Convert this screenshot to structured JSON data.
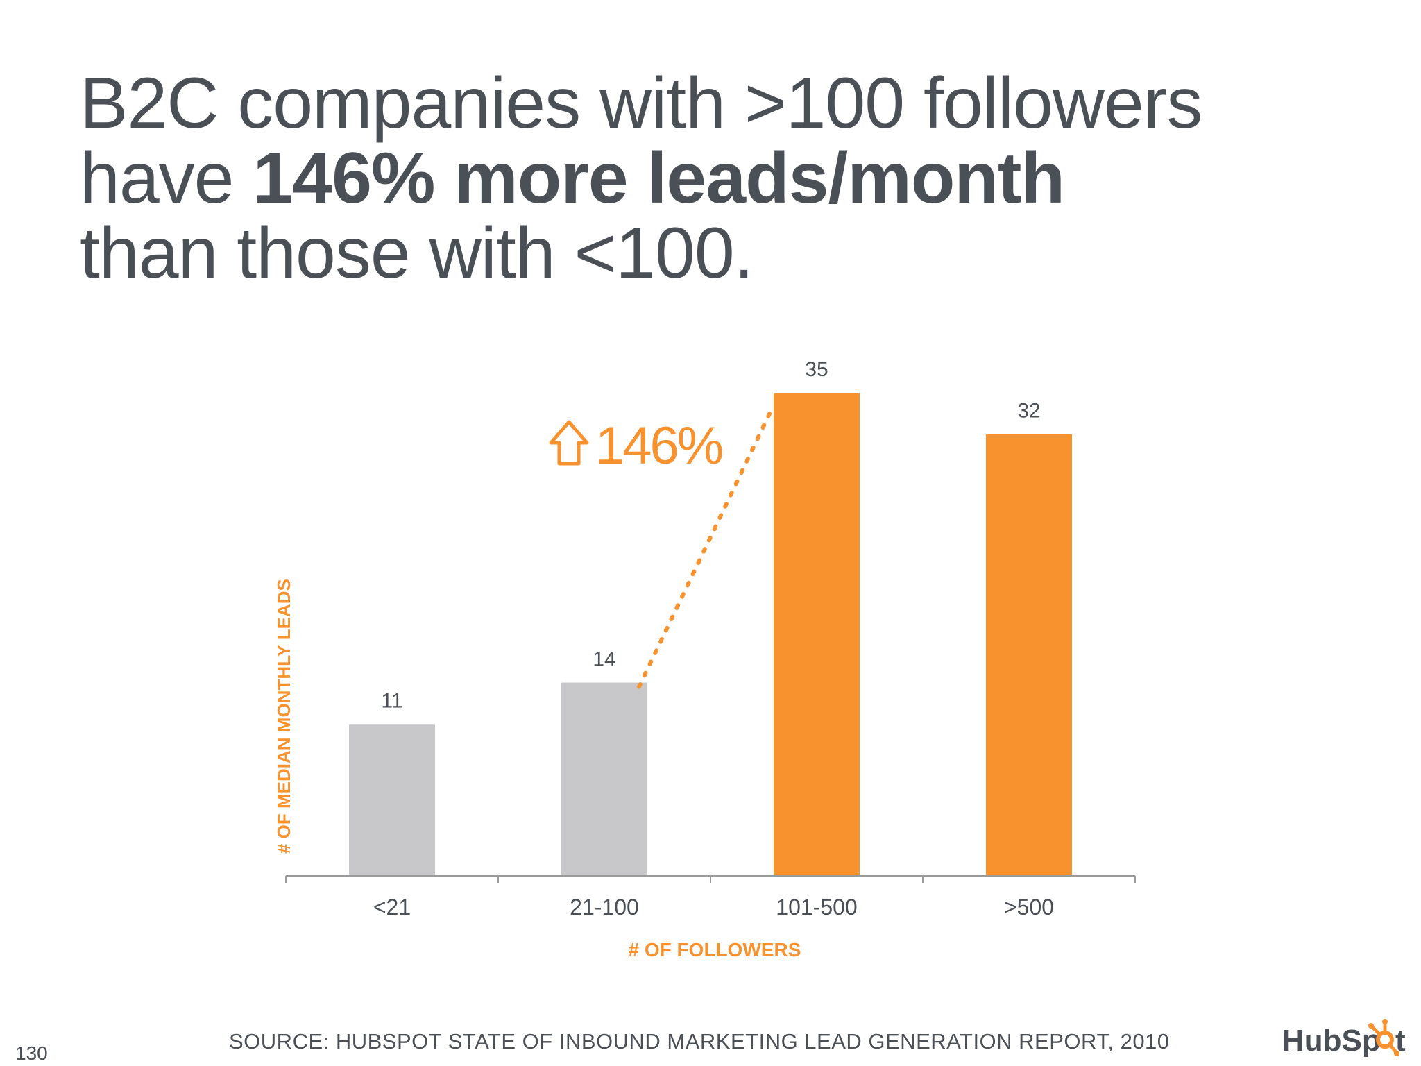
{
  "headline": {
    "line1": "B2C companies with >100 followers",
    "line2_prefix": "have ",
    "line2_bold": "146% more leads/month",
    "line3": "than those with <100."
  },
  "chart_data": {
    "type": "bar",
    "categories": [
      "<21",
      "21-100",
      "101-500",
      ">500"
    ],
    "values": [
      11,
      14,
      35,
      32
    ],
    "value_labels": [
      "11",
      "14",
      "35",
      "32"
    ],
    "bar_colors": [
      "#c8c8ca",
      "#c8c8ca",
      "#f7922e",
      "#f7922e"
    ],
    "xlabel": "# OF FOLLOWERS",
    "ylabel": "# OF MEDIAN MONTHLY LEADS",
    "ylim": [
      0,
      35
    ],
    "grid": false,
    "annotation": {
      "text": "146%",
      "icon": "up-arrow-outline-icon",
      "from_category": "21-100",
      "to_category": "101-500",
      "color": "#f7922e"
    }
  },
  "footer": {
    "source": "SOURCE: HUBSPOT STATE OF INBOUND MARKETING LEAD GENERATION REPORT, 2010",
    "page_number": "130"
  },
  "logo": {
    "text_prefix": "HubSp",
    "text_suffix": "t",
    "icon": "hubspot-sprocket-icon",
    "color": "#4a5056",
    "accent": "#f7922e"
  }
}
